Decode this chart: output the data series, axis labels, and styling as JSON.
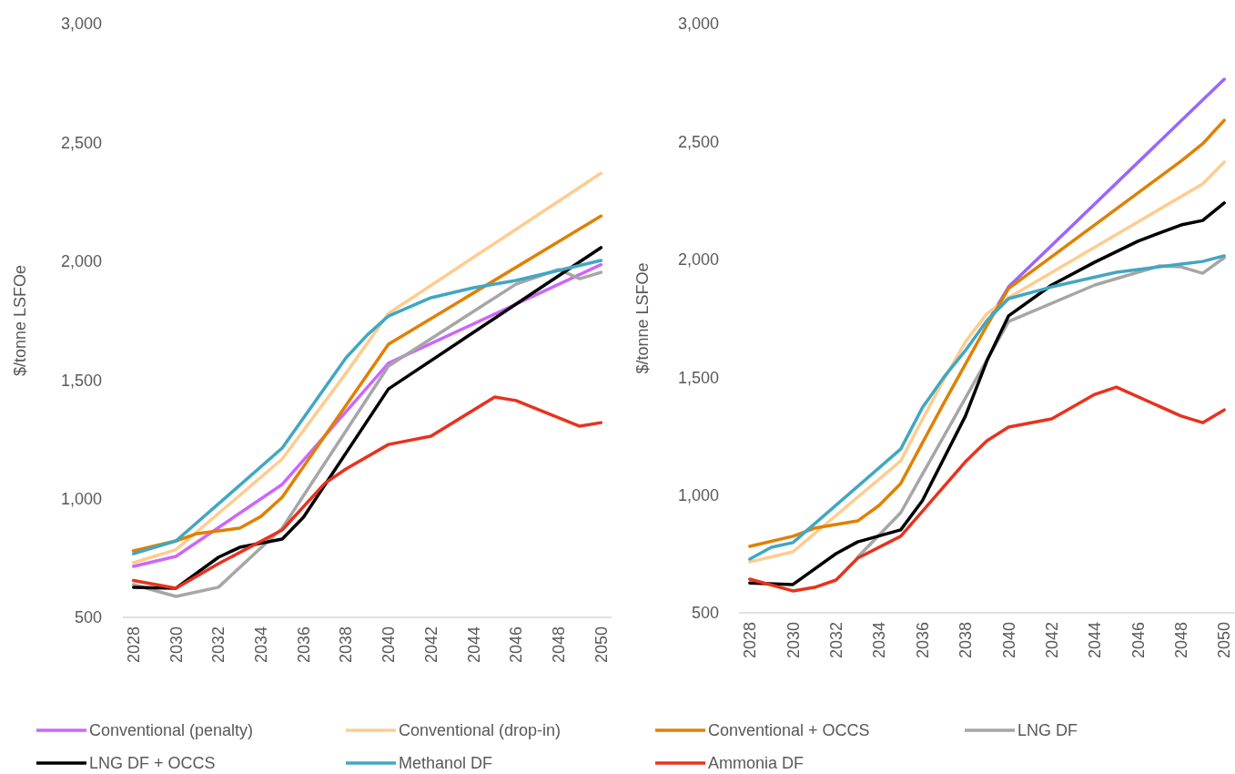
{
  "chart_data": [
    {
      "type": "line",
      "ylabel": "$/tonne LSFOe",
      "xlim": [
        2027.5,
        2050.5
      ],
      "xticks": [
        2028,
        2030,
        2032,
        2034,
        2036,
        2038,
        2040,
        2042,
        2044,
        2046,
        2048,
        2050
      ],
      "ylim": [
        500,
        3000
      ],
      "yticks": [
        500,
        {
          "value": 1000,
          "label": "1,000"
        },
        {
          "value": 1500,
          "label": "1,500"
        },
        {
          "value": 2000,
          "label": "2,000"
        },
        {
          "value": 2500,
          "label": "2,500"
        },
        {
          "value": 3000,
          "label": "3,000"
        }
      ],
      "legend": "bottom",
      "series": [
        {
          "name": "Conventional (penalty)",
          "color": "#cc66ff",
          "x": [
            2028,
            2030,
            2035,
            2040,
            2050
          ],
          "values": [
            715,
            757,
            1060,
            1570,
            1985
          ]
        },
        {
          "name": "Conventional (drop-in)",
          "color": "#ffcc8f",
          "x": [
            2028,
            2030,
            2035,
            2038,
            2040,
            2050
          ],
          "values": [
            730,
            785,
            1167,
            1528,
            1780,
            2370
          ]
        },
        {
          "name": "Conventional + OCCS",
          "color": "#e08000",
          "x": [
            2028,
            2030,
            2031,
            2033,
            2034,
            2035,
            2040,
            2050
          ],
          "values": [
            780,
            822,
            853,
            876,
            925,
            1006,
            1650,
            2190
          ]
        },
        {
          "name": "LNG DF",
          "color": "#a6a6a6",
          "x": [
            2028,
            2030,
            2032,
            2035,
            2040,
            2046,
            2048,
            2049,
            2050
          ],
          "values": [
            638,
            588,
            627,
            876,
            1558,
            1903,
            1965,
            1926,
            1953
          ]
        },
        {
          "name": "LNG DF + OCCS",
          "color": "#000000",
          "x": [
            2028,
            2030,
            2032,
            2033,
            2035,
            2036,
            2040,
            2050
          ],
          "values": [
            627,
            623,
            753,
            795,
            830,
            922,
            1462,
            2057
          ]
        },
        {
          "name": "Methanol DF",
          "color": "#41a7c2",
          "x": [
            2028,
            2030,
            2035,
            2038,
            2039,
            2040,
            2042,
            2044,
            2046,
            2048,
            2050
          ],
          "values": [
            768,
            822,
            1213,
            1593,
            1689,
            1769,
            1846,
            1888,
            1919,
            1961,
            2003
          ]
        },
        {
          "name": "Ammonia DF",
          "color": "#e8321e",
          "x": [
            2028,
            2030,
            2032,
            2035,
            2037,
            2038,
            2040,
            2042,
            2045,
            2046,
            2049,
            2050
          ],
          "values": [
            655,
            623,
            726,
            868,
            1064,
            1125,
            1228,
            1263,
            1428,
            1413,
            1305,
            1320
          ]
        }
      ]
    },
    {
      "type": "line",
      "ylabel": "$/tonne LSFOe",
      "xlim": [
        2027.5,
        2050.5
      ],
      "xticks": [
        2028,
        2030,
        2032,
        2034,
        2036,
        2038,
        2040,
        2042,
        2044,
        2046,
        2048,
        2050
      ],
      "ylim": [
        500,
        3000
      ],
      "yticks": [
        500,
        {
          "value": 1000,
          "label": "1,000"
        },
        {
          "value": 1500,
          "label": "1,500"
        },
        {
          "value": 2000,
          "label": "2,000"
        },
        {
          "value": 2500,
          "label": "2,500"
        },
        {
          "value": 3000,
          "label": "3,000"
        }
      ],
      "series": [
        {
          "color": "#9966ff",
          "x": [
            2039,
            2040,
            2050
          ],
          "values": [
            1730,
            1883,
            2764
          ]
        },
        {
          "color": "#ffcc8f",
          "x": [
            2028,
            2030,
            2035,
            2036,
            2037,
            2038,
            2039,
            2040,
            2049,
            2050
          ],
          "values": [
            716,
            759,
            1145,
            1320,
            1490,
            1650,
            1770,
            1837,
            2320,
            2413
          ]
        },
        {
          "color": "#e08000",
          "x": [
            2028,
            2030,
            2031,
            2033,
            2034,
            2035,
            2036,
            2037,
            2038,
            2039,
            2040,
            2048,
            2049,
            2050
          ],
          "values": [
            782,
            825,
            859,
            890,
            956,
            1049,
            1220,
            1390,
            1555,
            1720,
            1876,
            2417,
            2490,
            2590
          ]
        },
        {
          "color": "#a6a6a6",
          "x": [
            2033,
            2035,
            2040,
            2044,
            2047,
            2048,
            2049,
            2050
          ],
          "values": [
            736,
            925,
            1736,
            1891,
            1972,
            1968,
            1941,
            2007
          ]
        },
        {
          "color": "#000000",
          "x": [
            2028,
            2030,
            2032,
            2033,
            2035,
            2036,
            2038,
            2039,
            2040,
            2042,
            2044,
            2046,
            2048,
            2049,
            2050
          ],
          "values": [
            627,
            620,
            751,
            801,
            852,
            975,
            1335,
            1570,
            1760,
            1891,
            1988,
            2077,
            2146,
            2165,
            2239
          ]
        },
        {
          "color": "#41a7c2",
          "x": [
            2028,
            2029,
            2030,
            2035,
            2036,
            2037,
            2038,
            2039,
            2040,
            2042,
            2045,
            2048,
            2049,
            2050
          ],
          "values": [
            728,
            778,
            798,
            1195,
            1370,
            1500,
            1613,
            1740,
            1833,
            1883,
            1945,
            1980,
            1991,
            2015
          ]
        },
        {
          "color": "#e8321e",
          "x": [
            2028,
            2030,
            2031,
            2032,
            2033,
            2035,
            2038,
            2039,
            2040,
            2042,
            2044,
            2045,
            2048,
            2049,
            2050
          ],
          "values": [
            643,
            593,
            608,
            639,
            732,
            825,
            1141,
            1230,
            1288,
            1323,
            1427,
            1458,
            1335,
            1307,
            1361
          ]
        }
      ]
    }
  ]
}
